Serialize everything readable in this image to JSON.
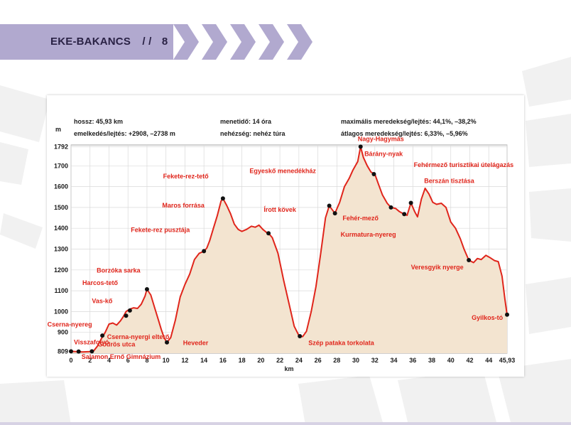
{
  "header": {
    "title": "EKE-BAKANCS",
    "separator": "/ /",
    "page_number": "8"
  },
  "colors": {
    "accent_lavender": "#b1a9cf",
    "chevron": "#b1a9cf",
    "profile_line": "#e0251b",
    "profile_fill": "#f3e4d0",
    "label_red": "#e0251b",
    "grid": "#d9d9d9"
  },
  "chart_data": {
    "type": "area",
    "ylabel": "m",
    "xlabel": "km",
    "ylim": [
      800,
      1800
    ],
    "xlim": [
      0,
      45.93
    ],
    "y_ticks": [
      809,
      900,
      1000,
      1100,
      1200,
      1300,
      1400,
      1500,
      1600,
      1700,
      1792
    ],
    "x_ticks": [
      0,
      2,
      4,
      6,
      8,
      10,
      12,
      14,
      16,
      18,
      20,
      22,
      24,
      26,
      28,
      30,
      32,
      34,
      36,
      38,
      40,
      42,
      44,
      45.93
    ],
    "x_tick_labels": [
      "0",
      "2",
      "4",
      "6",
      "8",
      "10",
      "12",
      "14",
      "16",
      "18",
      "20",
      "22",
      "24",
      "26",
      "28",
      "30",
      "32",
      "34",
      "36",
      "38",
      "40",
      "42",
      "44",
      "45,93"
    ],
    "grid": true,
    "info": {
      "length": "hossz: 45,93 km",
      "gain": "emelkedés/lejtés: +2908, –2738 m",
      "time": "menetidő: 14 óra",
      "difficulty": "nehézség: nehéz túra",
      "max_grade": "maximális meredekség/lejtés: 44,1%, –38,2%",
      "avg_grade": "átlagos meredekség/lejtés: 6,33%, –5,96%"
    },
    "profile": [
      [
        0,
        809
      ],
      [
        0.6,
        808
      ],
      [
        1.2,
        806
      ],
      [
        2,
        808
      ],
      [
        2.4,
        812
      ],
      [
        2.8,
        835
      ],
      [
        3.2,
        870
      ],
      [
        3.6,
        900
      ],
      [
        4,
        940
      ],
      [
        4.4,
        945
      ],
      [
        4.8,
        935
      ],
      [
        5.2,
        955
      ],
      [
        5.5,
        975
      ],
      [
        5.8,
        1000
      ],
      [
        6.2,
        1012
      ],
      [
        6.6,
        1018
      ],
      [
        7,
        1015
      ],
      [
        7.4,
        1035
      ],
      [
        7.8,
        1075
      ],
      [
        8,
        1107
      ],
      [
        8.4,
        1080
      ],
      [
        8.8,
        1020
      ],
      [
        9.2,
        960
      ],
      [
        9.5,
        915
      ],
      [
        9.8,
        875
      ],
      [
        10.1,
        852
      ],
      [
        10.5,
        875
      ],
      [
        11,
        960
      ],
      [
        11.5,
        1070
      ],
      [
        12,
        1130
      ],
      [
        12.5,
        1180
      ],
      [
        13,
        1250
      ],
      [
        13.5,
        1280
      ],
      [
        14,
        1290
      ],
      [
        14.3,
        1305
      ],
      [
        14.6,
        1340
      ],
      [
        15,
        1400
      ],
      [
        15.4,
        1460
      ],
      [
        15.8,
        1530
      ],
      [
        16,
        1543
      ],
      [
        16.4,
        1510
      ],
      [
        16.8,
        1470
      ],
      [
        17.2,
        1420
      ],
      [
        17.6,
        1395
      ],
      [
        18,
        1385
      ],
      [
        18.5,
        1395
      ],
      [
        19,
        1410
      ],
      [
        19.4,
        1405
      ],
      [
        19.8,
        1415
      ],
      [
        20.2,
        1395
      ],
      [
        20.6,
        1380
      ],
      [
        20.8,
        1376
      ],
      [
        21.2,
        1355
      ],
      [
        21.8,
        1280
      ],
      [
        22.4,
        1150
      ],
      [
        23,
        1030
      ],
      [
        23.5,
        930
      ],
      [
        24,
        885
      ],
      [
        24.4,
        880
      ],
      [
        24.8,
        905
      ],
      [
        25.3,
        1000
      ],
      [
        25.8,
        1120
      ],
      [
        26.3,
        1280
      ],
      [
        26.8,
        1450
      ],
      [
        27.2,
        1508
      ],
      [
        27.5,
        1490
      ],
      [
        27.8,
        1472
      ],
      [
        28.3,
        1525
      ],
      [
        28.8,
        1600
      ],
      [
        29.3,
        1640
      ],
      [
        29.7,
        1680
      ],
      [
        30.2,
        1720
      ],
      [
        30.5,
        1792
      ],
      [
        30.8,
        1740
      ],
      [
        31.2,
        1700
      ],
      [
        31.6,
        1670
      ],
      [
        32,
        1660
      ],
      [
        32.4,
        1610
      ],
      [
        32.8,
        1560
      ],
      [
        33.3,
        1520
      ],
      [
        33.7,
        1500
      ],
      [
        34.2,
        1495
      ],
      [
        34.6,
        1480
      ],
      [
        35,
        1470
      ],
      [
        35.4,
        1462
      ],
      [
        35.8,
        1522
      ],
      [
        36.2,
        1480
      ],
      [
        36.5,
        1455
      ],
      [
        36.9,
        1540
      ],
      [
        37.3,
        1592
      ],
      [
        37.7,
        1565
      ],
      [
        38.1,
        1525
      ],
      [
        38.5,
        1515
      ],
      [
        39,
        1520
      ],
      [
        39.5,
        1500
      ],
      [
        40,
        1430
      ],
      [
        40.5,
        1400
      ],
      [
        41,
        1350
      ],
      [
        41.4,
        1300
      ],
      [
        41.9,
        1247
      ],
      [
        42.4,
        1235
      ],
      [
        42.8,
        1255
      ],
      [
        43.2,
        1250
      ],
      [
        43.7,
        1270
      ],
      [
        44.1,
        1260
      ],
      [
        44.6,
        1245
      ],
      [
        45,
        1240
      ],
      [
        45.4,
        1170
      ],
      [
        45.7,
        1060
      ],
      [
        45.93,
        985
      ]
    ],
    "waypoints": [
      {
        "km": 0,
        "elev": 809,
        "name": "Visszafolyó",
        "anchor": "end",
        "lx": 0.3,
        "ly": 842,
        "dot": true
      },
      {
        "km": 0.8,
        "elev": 808,
        "name": "Salamon Ernő Gimnázium",
        "anchor": "start",
        "lx": 1.1,
        "ly": 772,
        "dot": true
      },
      {
        "km": 2.2,
        "elev": 809,
        "name": "Gödrös utca",
        "anchor": "start",
        "lx": 2.8,
        "ly": 832,
        "dot": true
      },
      {
        "km": 0,
        "elev": 900,
        "name": "Cserna-nyereg",
        "anchor": "start",
        "lx": -2.5,
        "ly": 928,
        "dot": false
      },
      {
        "km": 3.3,
        "elev": 885,
        "name": "Cserna-nyergi elterő",
        "anchor": "start",
        "lx": 3.8,
        "ly": 868,
        "dot": true
      },
      {
        "km": 5.8,
        "elev": 980,
        "name": "Vas-kő",
        "anchor": "start",
        "lx": 2.2,
        "ly": 1040,
        "dot": true
      },
      {
        "km": 6.2,
        "elev": 1005,
        "name": "Harcos-tető",
        "anchor": "start",
        "lx": 1.2,
        "ly": 1128,
        "dot": true
      },
      {
        "km": 8,
        "elev": 1107,
        "name": "Borzóka sarka",
        "anchor": "start",
        "lx": 2.7,
        "ly": 1188,
        "dot": true
      },
      {
        "km": 10.1,
        "elev": 852,
        "name": "Heveder",
        "anchor": "start",
        "lx": 11.8,
        "ly": 840,
        "dot": true
      },
      {
        "km": 14,
        "elev": 1290,
        "name": "Fekete-rez pusztája",
        "anchor": "start",
        "lx": 6.3,
        "ly": 1382,
        "dot": true
      },
      {
        "km": 16,
        "elev": 1543,
        "name": "Maros forrása",
        "anchor": "start",
        "lx": 9.6,
        "ly": 1500,
        "dot": true
      },
      {
        "km": 15.7,
        "elev": 1540,
        "name": "Fekete-rez-tető",
        "anchor": "start",
        "lx": 9.7,
        "ly": 1640,
        "dot": false
      },
      {
        "km": 20.8,
        "elev": 1376,
        "name": "Írott kövek",
        "anchor": "start",
        "lx": 20.3,
        "ly": 1480,
        "dot": true
      },
      {
        "km": 24.1,
        "elev": 882,
        "name": "Szép pataka torkolata",
        "anchor": "start",
        "lx": 25,
        "ly": 840,
        "dot": true
      },
      {
        "km": 27.2,
        "elev": 1508,
        "name": "Egyeskő menedékház",
        "anchor": "start",
        "lx": 18.8,
        "ly": 1665,
        "dot": true
      },
      {
        "km": 27.8,
        "elev": 1472,
        "name": "Fehér-mező",
        "anchor": "start",
        "lx": 28.6,
        "ly": 1438,
        "dot": true
      },
      {
        "km": 28,
        "elev": 1470,
        "name": "Kurmatura-nyereg",
        "anchor": "start",
        "lx": 28.4,
        "ly": 1360,
        "dot": false
      },
      {
        "km": 30.5,
        "elev": 1792,
        "name": "Nagy-Hagymás",
        "anchor": "start",
        "lx": 30.2,
        "ly": 1818,
        "dot": true
      },
      {
        "km": 31.9,
        "elev": 1660,
        "name": "Bárány-nyak",
        "anchor": "start",
        "lx": 30.9,
        "ly": 1747,
        "dot": true
      },
      {
        "km": 33.7,
        "elev": 1500,
        "name": "",
        "anchor": "start",
        "lx": 0,
        "ly": 0,
        "dot": true
      },
      {
        "km": 35.1,
        "elev": 1468,
        "name": "",
        "anchor": "start",
        "lx": 0,
        "ly": 0,
        "dot": true
      },
      {
        "km": 35.8,
        "elev": 1522,
        "name": "Fehérmező turisztikai útelágazás",
        "anchor": "start",
        "lx": 36.1,
        "ly": 1695,
        "dot": true
      },
      {
        "km": 36.3,
        "elev": 1500,
        "name": "Berszán tisztása",
        "anchor": "start",
        "lx": 37.2,
        "ly": 1618,
        "dot": false
      },
      {
        "km": 41.9,
        "elev": 1247,
        "name": "Veresgyik nyerge",
        "anchor": "start",
        "lx": 35.8,
        "ly": 1202,
        "dot": true
      },
      {
        "km": 45.93,
        "elev": 985,
        "name": "Gyilkos-tó",
        "anchor": "start",
        "lx": 42.2,
        "ly": 960,
        "dot": true
      }
    ]
  }
}
